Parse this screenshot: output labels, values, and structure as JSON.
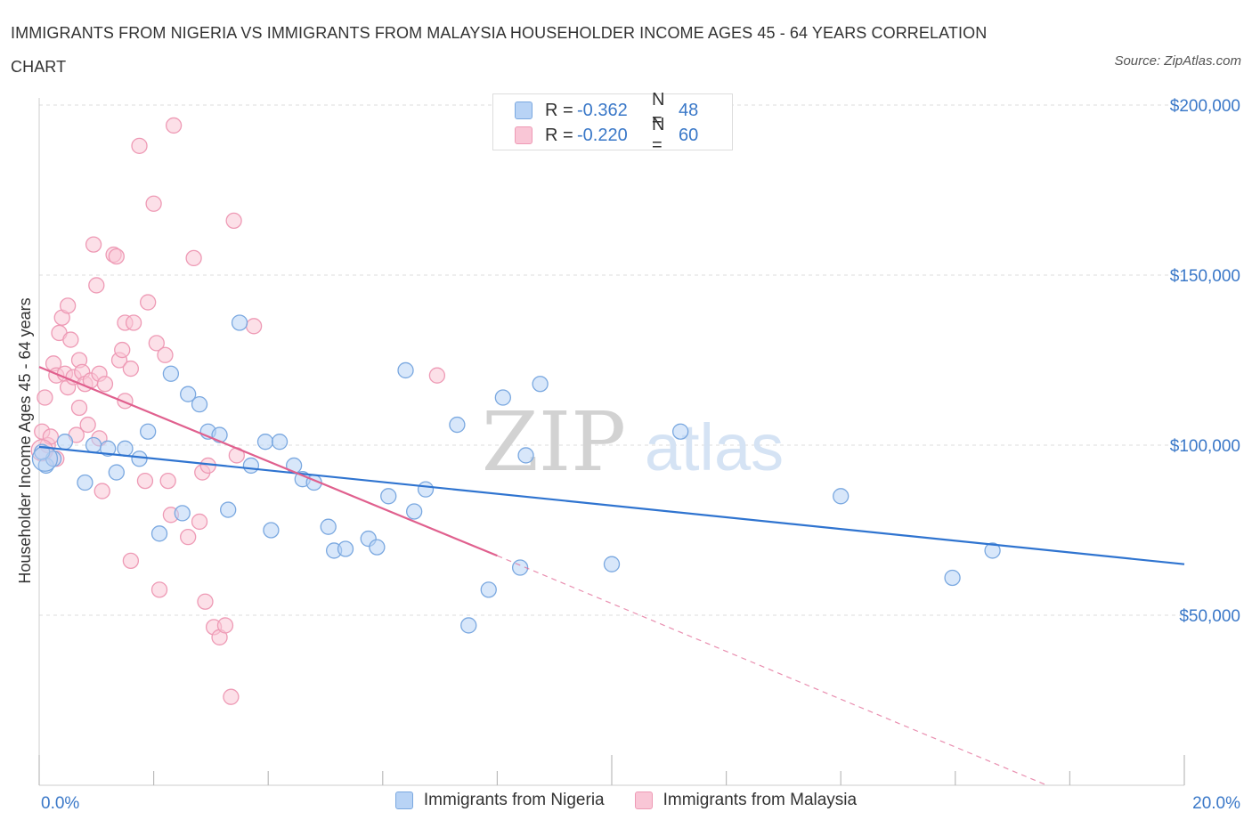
{
  "title": "IMMIGRANTS FROM NIGERIA VS IMMIGRANTS FROM MALAYSIA HOUSEHOLDER INCOME AGES 45 - 64 YEARS CORRELATION CHART",
  "source": "Source: ZipAtlas.com",
  "watermark": {
    "zip": "ZIP",
    "atlas": "atlas"
  },
  "colors": {
    "nigeria_fill": "#b8d3f5",
    "nigeria_stroke": "#7aa8e0",
    "nigeria_line": "#2f74d0",
    "malaysia_fill": "#f9c6d6",
    "malaysia_stroke": "#ee9ab5",
    "malaysia_line": "#e0608e",
    "axis_label": "#3a78c8",
    "grid": "#dddddd"
  },
  "legend": {
    "nigeria": {
      "r_label": "R =",
      "r_value": "-0.362",
      "n_label": "N =",
      "n_value": "48"
    },
    "malaysia": {
      "r_label": "R =",
      "r_value": "-0.220",
      "n_label": "N =",
      "n_value": "60"
    }
  },
  "chart_data": {
    "type": "scatter",
    "title": "IMMIGRANTS FROM NIGERIA VS IMMIGRANTS FROM MALAYSIA HOUSEHOLDER INCOME AGES 45 - 64 YEARS CORRELATION CHART",
    "xlabel": "",
    "ylabel": "Householder Income Ages 45 - 64 years",
    "xlim": [
      0,
      20
    ],
    "ylim": [
      0,
      200000
    ],
    "x_tick_labels": [
      "0.0%",
      "20.0%"
    ],
    "y_ticks": [
      50000,
      100000,
      150000,
      200000
    ],
    "y_tick_labels": [
      "$50,000",
      "$100,000",
      "$150,000",
      "$200,000"
    ],
    "grid": true,
    "legend_placement": "bottom",
    "series": [
      {
        "name": "Immigrants from Nigeria",
        "points": [
          [
            0.12,
            94000
          ],
          [
            0.25,
            96000
          ],
          [
            0.45,
            101000
          ],
          [
            0.8,
            89000
          ],
          [
            0.95,
            100000
          ],
          [
            1.2,
            99000
          ],
          [
            1.35,
            92000
          ],
          [
            1.5,
            99000
          ],
          [
            1.75,
            96000
          ],
          [
            1.9,
            104000
          ],
          [
            2.1,
            74000
          ],
          [
            2.3,
            121000
          ],
          [
            2.5,
            80000
          ],
          [
            2.6,
            115000
          ],
          [
            2.8,
            112000
          ],
          [
            2.95,
            104000
          ],
          [
            3.15,
            103000
          ],
          [
            3.3,
            81000
          ],
          [
            3.5,
            136000
          ],
          [
            3.7,
            94000
          ],
          [
            3.95,
            101000
          ],
          [
            4.05,
            75000
          ],
          [
            4.2,
            101000
          ],
          [
            4.45,
            94000
          ],
          [
            4.6,
            90000
          ],
          [
            4.8,
            89000
          ],
          [
            5.05,
            76000
          ],
          [
            5.15,
            69000
          ],
          [
            5.35,
            69500
          ],
          [
            5.75,
            72500
          ],
          [
            5.9,
            70000
          ],
          [
            6.1,
            85000
          ],
          [
            6.4,
            122000
          ],
          [
            6.55,
            80500
          ],
          [
            6.75,
            87000
          ],
          [
            7.3,
            106000
          ],
          [
            7.5,
            47000
          ],
          [
            7.85,
            57500
          ],
          [
            8.1,
            114000
          ],
          [
            8.4,
            64000
          ],
          [
            8.5,
            97000
          ],
          [
            8.75,
            118000
          ],
          [
            10.0,
            65000
          ],
          [
            11.2,
            104000
          ],
          [
            14.0,
            85000
          ],
          [
            15.95,
            61000
          ],
          [
            16.65,
            69000
          ],
          [
            0.05,
            98000
          ]
        ],
        "trendline": {
          "x": [
            0,
            20
          ],
          "y": [
            99500,
            65000
          ]
        }
      },
      {
        "name": "Immigrants from Malaysia",
        "points": [
          [
            0.05,
            104000
          ],
          [
            0.1,
            114000
          ],
          [
            0.15,
            100000
          ],
          [
            0.2,
            102500
          ],
          [
            0.25,
            124000
          ],
          [
            0.3,
            120500
          ],
          [
            0.3,
            96000
          ],
          [
            0.35,
            133000
          ],
          [
            0.4,
            137500
          ],
          [
            0.45,
            121000
          ],
          [
            0.5,
            141000
          ],
          [
            0.5,
            117000
          ],
          [
            0.55,
            131000
          ],
          [
            0.6,
            120000
          ],
          [
            0.65,
            103000
          ],
          [
            0.7,
            125000
          ],
          [
            0.7,
            111000
          ],
          [
            0.75,
            121500
          ],
          [
            0.8,
            118000
          ],
          [
            0.85,
            106000
          ],
          [
            0.9,
            119000
          ],
          [
            0.95,
            159000
          ],
          [
            1.0,
            147000
          ],
          [
            1.05,
            121000
          ],
          [
            1.05,
            102000
          ],
          [
            1.1,
            86500
          ],
          [
            1.15,
            118000
          ],
          [
            1.3,
            156000
          ],
          [
            1.35,
            155500
          ],
          [
            1.4,
            125000
          ],
          [
            1.45,
            128000
          ],
          [
            1.5,
            136000
          ],
          [
            1.5,
            113000
          ],
          [
            1.6,
            122500
          ],
          [
            1.65,
            136000
          ],
          [
            1.6,
            66000
          ],
          [
            1.75,
            188000
          ],
          [
            1.85,
            89500
          ],
          [
            1.9,
            142000
          ],
          [
            2.0,
            171000
          ],
          [
            2.05,
            130000
          ],
          [
            2.1,
            57500
          ],
          [
            2.2,
            126500
          ],
          [
            2.25,
            89500
          ],
          [
            2.3,
            79500
          ],
          [
            2.35,
            194000
          ],
          [
            2.6,
            73000
          ],
          [
            2.7,
            155000
          ],
          [
            2.8,
            77500
          ],
          [
            2.85,
            92000
          ],
          [
            2.9,
            54000
          ],
          [
            2.95,
            94000
          ],
          [
            3.05,
            46500
          ],
          [
            3.15,
            43500
          ],
          [
            3.25,
            47000
          ],
          [
            3.35,
            26000
          ],
          [
            3.4,
            166000
          ],
          [
            3.45,
            97000
          ],
          [
            3.75,
            135000
          ],
          [
            6.95,
            120500
          ]
        ],
        "trendline": {
          "x": [
            0,
            8.0
          ],
          "y": [
            123000,
            67500
          ]
        },
        "trendline_extension": {
          "x": [
            8.0,
            17.6
          ],
          "y": [
            67500,
            0
          ]
        }
      }
    ]
  }
}
